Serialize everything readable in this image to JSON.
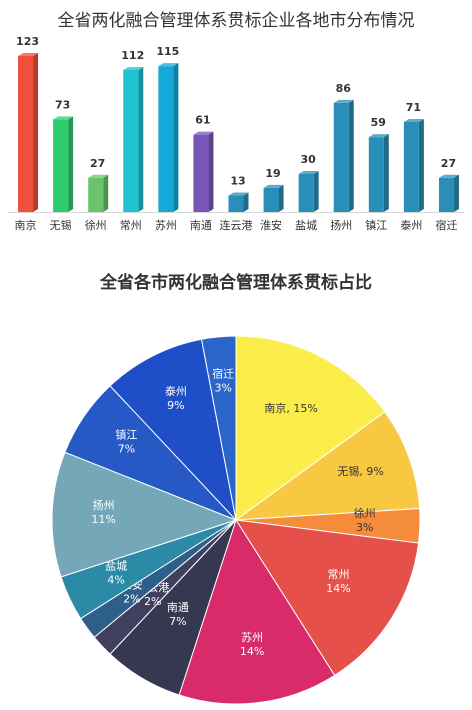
{
  "chart_data": [
    {
      "type": "bar",
      "title": "全省两化融合管理体系贯标企业各地市分布情况",
      "categories": [
        "南京",
        "无锡",
        "徐州",
        "常州",
        "苏州",
        "南通",
        "连云港",
        "淮安",
        "盐城",
        "扬州",
        "镇江",
        "泰州",
        "宿迁"
      ],
      "values": [
        123,
        73,
        27,
        112,
        115,
        61,
        13,
        19,
        30,
        86,
        59,
        71,
        27
      ],
      "colors": [
        "#f0503c",
        "#2ecc71",
        "#6ac46c",
        "#1fc2cf",
        "#14a9d6",
        "#7a55b8",
        "#2a8fb8",
        "#2a8fb8",
        "#2a8fb8",
        "#2a8fb8",
        "#2a8fb8",
        "#2a8fb8",
        "#2a8fb8"
      ],
      "ylim": [
        0,
        140
      ],
      "grid": false
    },
    {
      "type": "pie",
      "title": "全省各市两化融合管理体系贯标占比",
      "labels": [
        "南京",
        "无锡",
        "徐州",
        "常州",
        "苏州",
        "南通",
        "连云港",
        "淮安",
        "盐城",
        "扬州",
        "镇江",
        "泰州",
        "宿迁"
      ],
      "values": [
        15,
        9,
        3,
        14,
        14,
        7,
        2,
        2,
        4,
        11,
        7,
        9,
        3
      ],
      "display_labels": [
        "南京, 15%",
        "无锡, 9%",
        "徐州\n3%",
        "常州\n14%",
        "苏州\n14%",
        "南通\n7%",
        "连云港\n2%",
        "淮安\n2%",
        "盐城\n4%",
        "扬州\n11%",
        "镇江\n7%",
        "泰州\n9%",
        "宿迁\n3%"
      ],
      "colors": [
        "#fbee4a",
        "#f8c842",
        "#f58c3c",
        "#e5504a",
        "#d92a6a",
        "#353850",
        "#3f3f5e",
        "#2e5f8a",
        "#2b8aa6",
        "#74a8b8",
        "#2659c5",
        "#1f4fc8",
        "#2a66c9"
      ]
    }
  ]
}
